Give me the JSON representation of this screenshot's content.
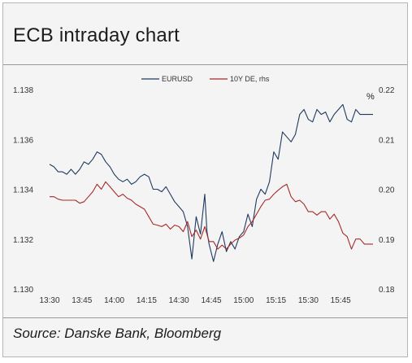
{
  "page": {
    "title": "ECB intraday chart",
    "source": "Source: Danske Bank, Bloomberg"
  },
  "chart_data": {
    "type": "line",
    "title": "ECB intraday chart",
    "x_ticks": [
      "13:30",
      "13:45",
      "14:00",
      "14:15",
      "14:30",
      "14:45",
      "15:00",
      "15:15",
      "15:30",
      "15:45"
    ],
    "xlim": [
      "13:30",
      "16:00"
    ],
    "y_left": {
      "label": "",
      "ylim": [
        1.13,
        1.138
      ],
      "ticks": [
        "1.130",
        "1.132",
        "1.134",
        "1.136",
        "1.138"
      ]
    },
    "y_right": {
      "label": "%",
      "ylim": [
        0.18,
        0.22
      ],
      "ticks": [
        "0.18",
        "0.19",
        "0.20",
        "0.21",
        "0.22"
      ]
    },
    "legend": {
      "placement": "top-center"
    },
    "grid": false,
    "series": [
      {
        "name": "EURUSD",
        "axis": "left",
        "color": "#1f3a5f",
        "points": [
          [
            "13:30",
            1.135
          ],
          [
            "13:32",
            1.1349
          ],
          [
            "13:34",
            1.1347
          ],
          [
            "13:36",
            1.1347
          ],
          [
            "13:38",
            1.1346
          ],
          [
            "13:40",
            1.1348
          ],
          [
            "13:42",
            1.1346
          ],
          [
            "13:44",
            1.1348
          ],
          [
            "13:46",
            1.1351
          ],
          [
            "13:48",
            1.135
          ],
          [
            "13:50",
            1.1352
          ],
          [
            "13:52",
            1.1355
          ],
          [
            "13:54",
            1.1354
          ],
          [
            "13:56",
            1.1351
          ],
          [
            "13:58",
            1.1349
          ],
          [
            "14:00",
            1.1346
          ],
          [
            "14:02",
            1.1344
          ],
          [
            "14:04",
            1.1343
          ],
          [
            "14:06",
            1.1344
          ],
          [
            "14:08",
            1.1342
          ],
          [
            "14:10",
            1.1343
          ],
          [
            "14:12",
            1.1345
          ],
          [
            "14:14",
            1.1346
          ],
          [
            "14:16",
            1.1345
          ],
          [
            "14:18",
            1.134
          ],
          [
            "14:20",
            1.134
          ],
          [
            "14:22",
            1.1339
          ],
          [
            "14:24",
            1.1341
          ],
          [
            "14:26",
            1.1338
          ],
          [
            "14:28",
            1.1335
          ],
          [
            "14:30",
            1.1333
          ],
          [
            "14:32",
            1.1331
          ],
          [
            "14:34",
            1.1325
          ],
          [
            "14:36",
            1.1312
          ],
          [
            "14:38",
            1.1329
          ],
          [
            "14:40",
            1.1322
          ],
          [
            "14:42",
            1.1338
          ],
          [
            "14:43",
            1.1323
          ],
          [
            "14:44",
            1.1318
          ],
          [
            "14:46",
            1.1311
          ],
          [
            "14:48",
            1.1318
          ],
          [
            "14:50",
            1.1323
          ],
          [
            "14:52",
            1.1315
          ],
          [
            "14:54",
            1.1319
          ],
          [
            "14:56",
            1.1316
          ],
          [
            "14:58",
            1.1321
          ],
          [
            "15:00",
            1.1323
          ],
          [
            "15:02",
            1.133
          ],
          [
            "15:04",
            1.1325
          ],
          [
            "15:06",
            1.1336
          ],
          [
            "15:08",
            1.134
          ],
          [
            "15:10",
            1.1338
          ],
          [
            "15:12",
            1.1343
          ],
          [
            "15:14",
            1.1355
          ],
          [
            "15:16",
            1.1352
          ],
          [
            "15:18",
            1.1363
          ],
          [
            "15:20",
            1.1361
          ],
          [
            "15:22",
            1.1359
          ],
          [
            "15:24",
            1.1362
          ],
          [
            "15:26",
            1.137
          ],
          [
            "15:28",
            1.1372
          ],
          [
            "15:30",
            1.1368
          ],
          [
            "15:32",
            1.1367
          ],
          [
            "15:34",
            1.1372
          ],
          [
            "15:36",
            1.137
          ],
          [
            "15:38",
            1.1371
          ],
          [
            "15:40",
            1.1367
          ],
          [
            "15:42",
            1.137
          ],
          [
            "15:44",
            1.1372
          ],
          [
            "15:46",
            1.1374
          ],
          [
            "15:48",
            1.1368
          ],
          [
            "15:50",
            1.1367
          ],
          [
            "15:52",
            1.1372
          ],
          [
            "15:54",
            1.137
          ],
          [
            "15:56",
            1.137
          ],
          [
            "16:00",
            1.137
          ]
        ]
      },
      {
        "name": "10Y DE, rhs",
        "axis": "right",
        "color": "#a52a2a",
        "points": [
          [
            "13:30",
            0.1985
          ],
          [
            "13:32",
            0.1985
          ],
          [
            "13:34",
            0.198
          ],
          [
            "13:36",
            0.1978
          ],
          [
            "13:38",
            0.1978
          ],
          [
            "13:40",
            0.1978
          ],
          [
            "13:42",
            0.1978
          ],
          [
            "13:44",
            0.1972
          ],
          [
            "13:46",
            0.1975
          ],
          [
            "13:48",
            0.1985
          ],
          [
            "13:50",
            0.1995
          ],
          [
            "13:52",
            0.201
          ],
          [
            "13:54",
            0.2
          ],
          [
            "13:56",
            0.2015
          ],
          [
            "13:58",
            0.2005
          ],
          [
            "14:00",
            0.1995
          ],
          [
            "14:02",
            0.1985
          ],
          [
            "14:04",
            0.199
          ],
          [
            "14:06",
            0.1982
          ],
          [
            "14:08",
            0.1978
          ],
          [
            "14:10",
            0.197
          ],
          [
            "14:12",
            0.1965
          ],
          [
            "14:14",
            0.196
          ],
          [
            "14:16",
            0.1945
          ],
          [
            "14:18",
            0.193
          ],
          [
            "14:20",
            0.1928
          ],
          [
            "14:22",
            0.1925
          ],
          [
            "14:24",
            0.193
          ],
          [
            "14:26",
            0.192
          ],
          [
            "14:28",
            0.1928
          ],
          [
            "14:30",
            0.1925
          ],
          [
            "14:32",
            0.1915
          ],
          [
            "14:34",
            0.1935
          ],
          [
            "14:36",
            0.1905
          ],
          [
            "14:38",
            0.1918
          ],
          [
            "14:40",
            0.19
          ],
          [
            "14:42",
            0.1925
          ],
          [
            "14:44",
            0.1895
          ],
          [
            "14:46",
            0.1895
          ],
          [
            "14:48",
            0.188
          ],
          [
            "14:50",
            0.1888
          ],
          [
            "14:52",
            0.188
          ],
          [
            "14:54",
            0.189
          ],
          [
            "14:56",
            0.1898
          ],
          [
            "14:58",
            0.1902
          ],
          [
            "15:00",
            0.1908
          ],
          [
            "15:02",
            0.1925
          ],
          [
            "15:04",
            0.1935
          ],
          [
            "15:06",
            0.195
          ],
          [
            "15:08",
            0.1965
          ],
          [
            "15:10",
            0.1978
          ],
          [
            "15:12",
            0.198
          ],
          [
            "15:14",
            0.199
          ],
          [
            "15:16",
            0.1998
          ],
          [
            "15:18",
            0.2005
          ],
          [
            "15:20",
            0.201
          ],
          [
            "15:22",
            0.1985
          ],
          [
            "15:24",
            0.1975
          ],
          [
            "15:26",
            0.1978
          ],
          [
            "15:28",
            0.197
          ],
          [
            "15:30",
            0.1955
          ],
          [
            "15:32",
            0.1955
          ],
          [
            "15:34",
            0.1948
          ],
          [
            "15:36",
            0.1955
          ],
          [
            "15:38",
            0.1955
          ],
          [
            "15:40",
            0.194
          ],
          [
            "15:42",
            0.195
          ],
          [
            "15:44",
            0.1935
          ],
          [
            "15:46",
            0.1912
          ],
          [
            "15:48",
            0.1905
          ],
          [
            "15:50",
            0.188
          ],
          [
            "15:52",
            0.19
          ],
          [
            "15:54",
            0.19
          ],
          [
            "15:56",
            0.189
          ],
          [
            "15:58",
            0.189
          ],
          [
            "16:00",
            0.189
          ]
        ]
      }
    ]
  }
}
